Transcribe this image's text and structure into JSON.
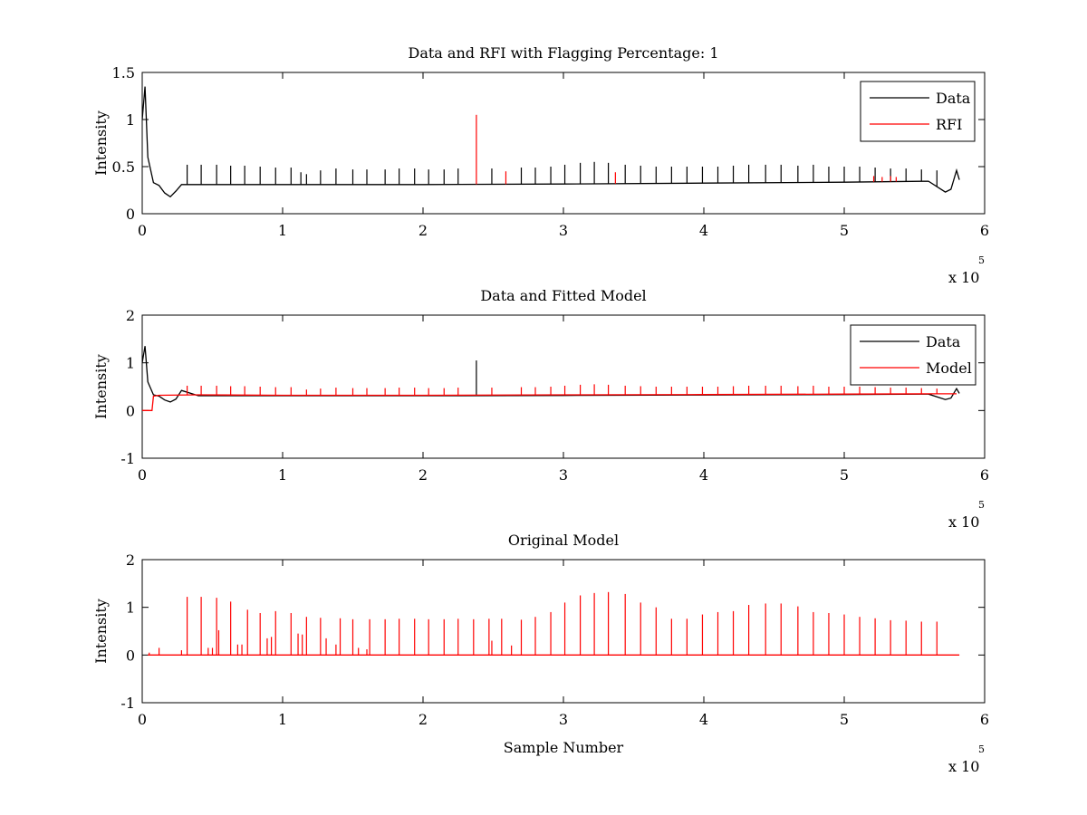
{
  "figure": {
    "background": "#ffffff",
    "colors": {
      "data": "#000000",
      "rfi": "#ff0000",
      "model": "#ff0000"
    }
  },
  "chart_data": [
    {
      "type": "line",
      "title": "Data and RFI with Flagging Percentage: 1",
      "xlabel": "",
      "ylabel": "Intensity",
      "xlim": [
        0,
        600000
      ],
      "ylim": [
        0,
        1.5
      ],
      "xticks": [
        0,
        1,
        2,
        3,
        4,
        5,
        6
      ],
      "yticks": [
        0,
        0.5,
        1,
        1.5
      ],
      "x_multiplier": {
        "base": "x 10",
        "exponent": "5"
      },
      "grid": false,
      "legend_position": "top-right",
      "baseline": {
        "x": [
          0,
          2000,
          4000,
          8000,
          12000,
          16000,
          20000,
          24000,
          28000,
          40000,
          100000,
          200000,
          300000,
          400000,
          500000,
          560000,
          572000,
          576000,
          580000,
          582000
        ],
        "y": [
          1.0,
          1.35,
          0.6,
          0.33,
          0.3,
          0.22,
          0.18,
          0.24,
          0.31,
          0.31,
          0.31,
          0.31,
          0.315,
          0.325,
          0.335,
          0.345,
          0.23,
          0.26,
          0.46,
          0.36
        ]
      },
      "series": [
        {
          "name": "Data",
          "color": "#000000",
          "spikes": [
            {
              "x": 32000,
              "y": 0.52
            },
            {
              "x": 42000,
              "y": 0.52
            },
            {
              "x": 53000,
              "y": 0.52
            },
            {
              "x": 63000,
              "y": 0.51
            },
            {
              "x": 73000,
              "y": 0.51
            },
            {
              "x": 84000,
              "y": 0.5
            },
            {
              "x": 95000,
              "y": 0.49
            },
            {
              "x": 106000,
              "y": 0.49
            },
            {
              "x": 113000,
              "y": 0.44
            },
            {
              "x": 117000,
              "y": 0.42
            },
            {
              "x": 127000,
              "y": 0.46
            },
            {
              "x": 138000,
              "y": 0.48
            },
            {
              "x": 150000,
              "y": 0.47
            },
            {
              "x": 160000,
              "y": 0.47
            },
            {
              "x": 173000,
              "y": 0.47
            },
            {
              "x": 183000,
              "y": 0.48
            },
            {
              "x": 194000,
              "y": 0.48
            },
            {
              "x": 204000,
              "y": 0.47
            },
            {
              "x": 215000,
              "y": 0.47
            },
            {
              "x": 225000,
              "y": 0.48
            },
            {
              "x": 249000,
              "y": 0.48
            },
            {
              "x": 270000,
              "y": 0.49
            },
            {
              "x": 280000,
              "y": 0.49
            },
            {
              "x": 291000,
              "y": 0.5
            },
            {
              "x": 301000,
              "y": 0.52
            },
            {
              "x": 312000,
              "y": 0.54
            },
            {
              "x": 322000,
              "y": 0.55
            },
            {
              "x": 332000,
              "y": 0.54
            },
            {
              "x": 344000,
              "y": 0.52
            },
            {
              "x": 355000,
              "y": 0.51
            },
            {
              "x": 366000,
              "y": 0.5
            },
            {
              "x": 377000,
              "y": 0.5
            },
            {
              "x": 388000,
              "y": 0.5
            },
            {
              "x": 399000,
              "y": 0.5
            },
            {
              "x": 410000,
              "y": 0.5
            },
            {
              "x": 421000,
              "y": 0.51
            },
            {
              "x": 432000,
              "y": 0.52
            },
            {
              "x": 444000,
              "y": 0.52
            },
            {
              "x": 455000,
              "y": 0.52
            },
            {
              "x": 467000,
              "y": 0.51
            },
            {
              "x": 478000,
              "y": 0.52
            },
            {
              "x": 489000,
              "y": 0.5
            },
            {
              "x": 500000,
              "y": 0.5
            },
            {
              "x": 511000,
              "y": 0.5
            },
            {
              "x": 522000,
              "y": 0.49
            },
            {
              "x": 533000,
              "y": 0.48
            },
            {
              "x": 544000,
              "y": 0.48
            },
            {
              "x": 555000,
              "y": 0.47
            },
            {
              "x": 566000,
              "y": 0.46
            }
          ]
        },
        {
          "name": "RFI",
          "color": "#ff0000",
          "spikes": [
            {
              "x": 238000,
              "y": 1.05
            },
            {
              "x": 259000,
              "y": 0.45
            },
            {
              "x": 337000,
              "y": 0.44
            },
            {
              "x": 521000,
              "y": 0.4
            },
            {
              "x": 527000,
              "y": 0.39
            },
            {
              "x": 533000,
              "y": 0.4
            },
            {
              "x": 537000,
              "y": 0.39
            }
          ]
        }
      ]
    },
    {
      "type": "line",
      "title": "Data and Fitted Model",
      "xlabel": "",
      "ylabel": "Intensity",
      "xlim": [
        0,
        600000
      ],
      "ylim": [
        -1,
        2
      ],
      "xticks": [
        0,
        1,
        2,
        3,
        4,
        5,
        6
      ],
      "yticks": [
        -1,
        0,
        1,
        2
      ],
      "x_multiplier": {
        "base": "x 10",
        "exponent": "5"
      },
      "grid": false,
      "legend_position": "top-right",
      "series": [
        {
          "name": "Data",
          "color": "#000000",
          "x": [
            0,
            2000,
            4000,
            8000,
            12000,
            16000,
            20000,
            24000,
            28000,
            40000,
            100000,
            200000,
            300000,
            400000,
            500000,
            560000,
            572000,
            576000,
            580000,
            582000
          ],
          "y": [
            1.0,
            1.35,
            0.6,
            0.33,
            0.3,
            0.22,
            0.18,
            0.24,
            0.42,
            0.31,
            0.31,
            0.31,
            0.315,
            0.325,
            0.335,
            0.345,
            0.23,
            0.26,
            0.46,
            0.36
          ],
          "spikes": [
            {
              "x": 238000,
              "y": 1.05
            }
          ]
        },
        {
          "name": "Model",
          "color": "#ff0000",
          "x": [
            0,
            7000,
            8000,
            12000,
            40000,
            100000,
            200000,
            300000,
            400000,
            500000,
            560000,
            580000
          ],
          "y": [
            0.0,
            0.0,
            0.3,
            0.32,
            0.33,
            0.32,
            0.32,
            0.33,
            0.335,
            0.345,
            0.35,
            0.35
          ],
          "spikes": [
            {
              "x": 32000,
              "y": 0.52
            },
            {
              "x": 42000,
              "y": 0.52
            },
            {
              "x": 53000,
              "y": 0.52
            },
            {
              "x": 63000,
              "y": 0.51
            },
            {
              "x": 73000,
              "y": 0.51
            },
            {
              "x": 84000,
              "y": 0.5
            },
            {
              "x": 95000,
              "y": 0.49
            },
            {
              "x": 106000,
              "y": 0.49
            },
            {
              "x": 117000,
              "y": 0.44
            },
            {
              "x": 127000,
              "y": 0.46
            },
            {
              "x": 138000,
              "y": 0.48
            },
            {
              "x": 150000,
              "y": 0.47
            },
            {
              "x": 160000,
              "y": 0.47
            },
            {
              "x": 173000,
              "y": 0.47
            },
            {
              "x": 183000,
              "y": 0.48
            },
            {
              "x": 194000,
              "y": 0.48
            },
            {
              "x": 204000,
              "y": 0.47
            },
            {
              "x": 215000,
              "y": 0.47
            },
            {
              "x": 225000,
              "y": 0.48
            },
            {
              "x": 249000,
              "y": 0.48
            },
            {
              "x": 270000,
              "y": 0.49
            },
            {
              "x": 280000,
              "y": 0.49
            },
            {
              "x": 291000,
              "y": 0.5
            },
            {
              "x": 301000,
              "y": 0.52
            },
            {
              "x": 312000,
              "y": 0.54
            },
            {
              "x": 322000,
              "y": 0.55
            },
            {
              "x": 332000,
              "y": 0.54
            },
            {
              "x": 344000,
              "y": 0.52
            },
            {
              "x": 355000,
              "y": 0.51
            },
            {
              "x": 366000,
              "y": 0.5
            },
            {
              "x": 377000,
              "y": 0.5
            },
            {
              "x": 388000,
              "y": 0.5
            },
            {
              "x": 399000,
              "y": 0.5
            },
            {
              "x": 410000,
              "y": 0.5
            },
            {
              "x": 421000,
              "y": 0.51
            },
            {
              "x": 432000,
              "y": 0.52
            },
            {
              "x": 444000,
              "y": 0.52
            },
            {
              "x": 455000,
              "y": 0.52
            },
            {
              "x": 467000,
              "y": 0.51
            },
            {
              "x": 478000,
              "y": 0.52
            },
            {
              "x": 489000,
              "y": 0.5
            },
            {
              "x": 500000,
              "y": 0.5
            },
            {
              "x": 511000,
              "y": 0.5
            },
            {
              "x": 522000,
              "y": 0.49
            },
            {
              "x": 533000,
              "y": 0.48
            },
            {
              "x": 544000,
              "y": 0.48
            },
            {
              "x": 555000,
              "y": 0.47
            },
            {
              "x": 566000,
              "y": 0.46
            }
          ]
        }
      ]
    },
    {
      "type": "line",
      "title": "Original Model",
      "xlabel": "Sample Number",
      "ylabel": "Intensity",
      "xlim": [
        0,
        600000
      ],
      "ylim": [
        -1,
        2
      ],
      "xticks": [
        0,
        1,
        2,
        3,
        4,
        5,
        6
      ],
      "yticks": [
        -1,
        0,
        1,
        2
      ],
      "x_multiplier": {
        "base": "x 10",
        "exponent": "5"
      },
      "grid": false,
      "series": [
        {
          "color": "#ff0000",
          "x": [
            4000,
            582000
          ],
          "y": [
            0,
            0
          ],
          "spikes": [
            {
              "x": 5000,
              "y": 0.05
            },
            {
              "x": 12000,
              "y": 0.15
            },
            {
              "x": 28000,
              "y": 0.1
            },
            {
              "x": 32000,
              "y": 1.22
            },
            {
              "x": 42000,
              "y": 1.22
            },
            {
              "x": 47000,
              "y": 0.15
            },
            {
              "x": 50000,
              "y": 0.15
            },
            {
              "x": 53000,
              "y": 1.2
            },
            {
              "x": 54500,
              "y": 0.52
            },
            {
              "x": 63000,
              "y": 1.12
            },
            {
              "x": 68000,
              "y": 0.22
            },
            {
              "x": 71000,
              "y": 0.22
            },
            {
              "x": 75000,
              "y": 0.95
            },
            {
              "x": 84000,
              "y": 0.88
            },
            {
              "x": 89000,
              "y": 0.35
            },
            {
              "x": 92000,
              "y": 0.38
            },
            {
              "x": 95000,
              "y": 0.92
            },
            {
              "x": 106000,
              "y": 0.88
            },
            {
              "x": 111000,
              "y": 0.45
            },
            {
              "x": 114000,
              "y": 0.43
            },
            {
              "x": 117000,
              "y": 0.8
            },
            {
              "x": 127000,
              "y": 0.78
            },
            {
              "x": 131000,
              "y": 0.35
            },
            {
              "x": 138000,
              "y": 0.22
            },
            {
              "x": 141000,
              "y": 0.77
            },
            {
              "x": 150000,
              "y": 0.75
            },
            {
              "x": 154000,
              "y": 0.15
            },
            {
              "x": 160000,
              "y": 0.12
            },
            {
              "x": 162000,
              "y": 0.75
            },
            {
              "x": 173000,
              "y": 0.75
            },
            {
              "x": 183000,
              "y": 0.76
            },
            {
              "x": 194000,
              "y": 0.76
            },
            {
              "x": 204000,
              "y": 0.75
            },
            {
              "x": 215000,
              "y": 0.75
            },
            {
              "x": 225000,
              "y": 0.76
            },
            {
              "x": 236000,
              "y": 0.75
            },
            {
              "x": 247000,
              "y": 0.76
            },
            {
              "x": 249000,
              "y": 0.3
            },
            {
              "x": 256000,
              "y": 0.76
            },
            {
              "x": 263000,
              "y": 0.2
            },
            {
              "x": 270000,
              "y": 0.74
            },
            {
              "x": 280000,
              "y": 0.8
            },
            {
              "x": 291000,
              "y": 0.9
            },
            {
              "x": 301000,
              "y": 1.1
            },
            {
              "x": 312000,
              "y": 1.25
            },
            {
              "x": 322000,
              "y": 1.3
            },
            {
              "x": 332000,
              "y": 1.32
            },
            {
              "x": 344000,
              "y": 1.28
            },
            {
              "x": 355000,
              "y": 1.1
            },
            {
              "x": 366000,
              "y": 1.0
            },
            {
              "x": 377000,
              "y": 0.76
            },
            {
              "x": 388000,
              "y": 0.76
            },
            {
              "x": 399000,
              "y": 0.85
            },
            {
              "x": 410000,
              "y": 0.9
            },
            {
              "x": 421000,
              "y": 0.92
            },
            {
              "x": 432000,
              "y": 1.05
            },
            {
              "x": 444000,
              "y": 1.08
            },
            {
              "x": 455000,
              "y": 1.08
            },
            {
              "x": 467000,
              "y": 1.02
            },
            {
              "x": 478000,
              "y": 0.9
            },
            {
              "x": 489000,
              "y": 0.88
            },
            {
              "x": 500000,
              "y": 0.85
            },
            {
              "x": 511000,
              "y": 0.8
            },
            {
              "x": 522000,
              "y": 0.77
            },
            {
              "x": 533000,
              "y": 0.73
            },
            {
              "x": 544000,
              "y": 0.72
            },
            {
              "x": 555000,
              "y": 0.7
            },
            {
              "x": 566000,
              "y": 0.7
            }
          ]
        }
      ]
    }
  ]
}
